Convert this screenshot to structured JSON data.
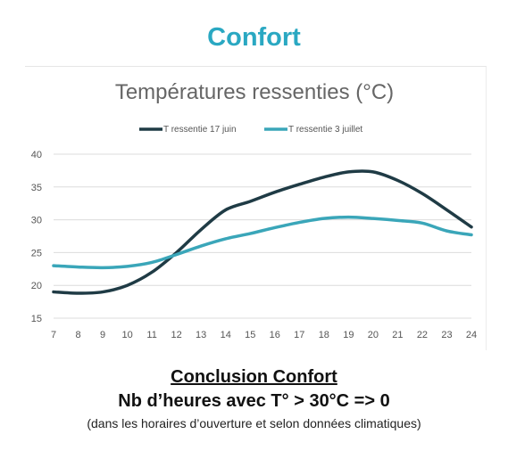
{
  "header": {
    "title": "Confort"
  },
  "chart_data": {
    "type": "line",
    "title": "Températures ressenties (°C)",
    "xlabel": "",
    "ylabel": "",
    "x": [
      7,
      8,
      9,
      10,
      11,
      12,
      13,
      14,
      15,
      16,
      17,
      18,
      19,
      20,
      21,
      22,
      23,
      24
    ],
    "ylim": [
      15,
      40
    ],
    "yticks": [
      15,
      20,
      25,
      30,
      35,
      40
    ],
    "grid": true,
    "legend_position": "top",
    "series": [
      {
        "name": "T ressentie 17 juin",
        "color": "#1f3b45",
        "values": [
          19.0,
          18.8,
          19.0,
          20.0,
          22.0,
          25.0,
          28.5,
          31.5,
          32.8,
          34.2,
          35.4,
          36.5,
          37.3,
          37.3,
          36.0,
          34.0,
          31.5,
          28.9
        ]
      },
      {
        "name": "T ressentie 3 juillet",
        "color": "#3aa6b9",
        "values": [
          23.0,
          22.8,
          22.7,
          22.9,
          23.5,
          24.7,
          26.0,
          27.1,
          27.9,
          28.8,
          29.6,
          30.2,
          30.4,
          30.2,
          29.9,
          29.5,
          28.3,
          27.7
        ]
      }
    ]
  },
  "conclusion": {
    "heading": "Conclusion Confort",
    "result": "Nb d’heures avec T° > 30°C => 0",
    "note": "(dans les horaires d’ouverture et selon données climatiques)"
  }
}
